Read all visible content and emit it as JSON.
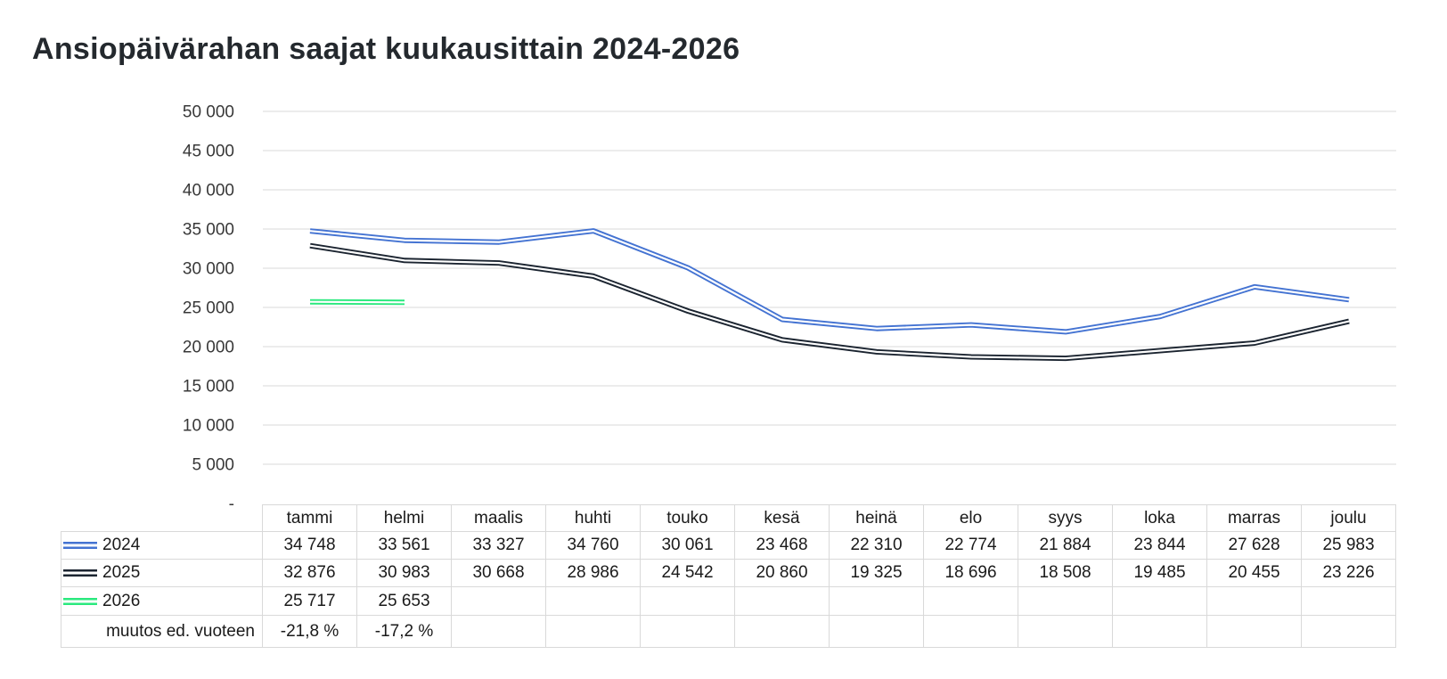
{
  "title": "Ansiopäivärahan saajat kuukausittain 2024-2026",
  "colors": {
    "series_2024": "#4473d2",
    "series_2025": "#1b2430",
    "series_2026": "#2ae97e",
    "gridline": "#d9d9d9",
    "table_border": "#d9d9d9",
    "axis_text": "#383838",
    "title_text": "#24292e",
    "line_inner": "#ffffff"
  },
  "chart_data": {
    "type": "line",
    "title": "Ansiopäivärahan saajat kuukausittain 2024-2026",
    "categories": [
      "tammi",
      "helmi",
      "maalis",
      "huhti",
      "touko",
      "kesä",
      "heinä",
      "elo",
      "syys",
      "loka",
      "marras",
      "joulu"
    ],
    "series": [
      {
        "name": "2024",
        "color": "#4473d2",
        "values": [
          34748,
          33561,
          33327,
          34760,
          30061,
          23468,
          22310,
          22774,
          21884,
          23844,
          27628,
          25983
        ]
      },
      {
        "name": "2025",
        "color": "#1b2430",
        "values": [
          32876,
          30983,
          30668,
          28986,
          24542,
          20860,
          19325,
          18696,
          18508,
          19485,
          20455,
          23226
        ]
      },
      {
        "name": "2026",
        "color": "#2ae97e",
        "values": [
          25717,
          25653
        ]
      }
    ],
    "ylim": [
      0,
      50000
    ],
    "ytick_step": 5000,
    "ytick_labels": [
      "-",
      "5 000",
      "10 000",
      "15 000",
      "20 000",
      "25 000",
      "30 000",
      "35 000",
      "40 000",
      "45 000",
      "50 000"
    ],
    "grid": true,
    "line_style": "double",
    "legend_position": "table-left-column"
  },
  "table": {
    "columns": [
      "tammi",
      "helmi",
      "maalis",
      "huhti",
      "touko",
      "kesä",
      "heinä",
      "elo",
      "syys",
      "loka",
      "marras",
      "joulu"
    ],
    "rows": [
      {
        "label": "2024",
        "marker_color": "#4473d2",
        "values": [
          "34 748",
          "33 561",
          "33 327",
          "34 760",
          "30 061",
          "23 468",
          "22 310",
          "22 774",
          "21 884",
          "23 844",
          "27 628",
          "25 983"
        ]
      },
      {
        "label": "2025",
        "marker_color": "#1b2430",
        "values": [
          "32 876",
          "30 983",
          "30 668",
          "28 986",
          "24 542",
          "20 860",
          "19 325",
          "18 696",
          "18 508",
          "19 485",
          "20 455",
          "23 226"
        ]
      },
      {
        "label": "2026",
        "marker_color": "#2ae97e",
        "values": [
          "25 717",
          "25 653",
          "",
          "",
          "",
          "",
          "",
          "",
          "",
          "",
          "",
          ""
        ]
      },
      {
        "label": "muutos ed. vuoteen",
        "marker_color": null,
        "values": [
          "-21,8 %",
          "-17,2 %",
          "",
          "",
          "",
          "",
          "",
          "",
          "",
          "",
          "",
          ""
        ]
      }
    ]
  }
}
